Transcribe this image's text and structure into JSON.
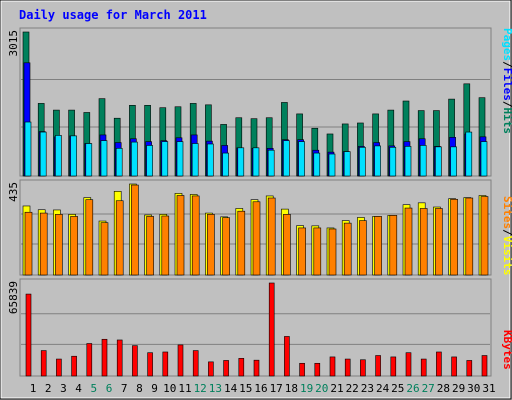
{
  "chart_data": [
    {
      "type": "bar",
      "title": "Daily usage for March 2011",
      "categories": [
        "1",
        "2",
        "3",
        "4",
        "5",
        "6",
        "7",
        "8",
        "9",
        "10",
        "11",
        "12",
        "13",
        "14",
        "15",
        "16",
        "17",
        "18",
        "19",
        "20",
        "21",
        "22",
        "23",
        "24",
        "25",
        "26",
        "27",
        "28",
        "29",
        "30",
        "31"
      ],
      "weekend_days": [
        "5",
        "6",
        "12",
        "13",
        "19",
        "20",
        "26",
        "27"
      ],
      "ylim": [
        0,
        3015
      ],
      "max_label": "3015",
      "series": [
        {
          "name": "Hits",
          "color": "#00805c",
          "values": [
            3015,
            1520,
            1380,
            1380,
            1330,
            1620,
            1210,
            1480,
            1480,
            1430,
            1450,
            1520,
            1490,
            1080,
            1220,
            1200,
            1220,
            1540,
            1300,
            1000,
            880,
            1090,
            1110,
            1300,
            1380,
            1570,
            1370,
            1370,
            1610,
            1930,
            1640
          ]
        },
        {
          "name": "Files",
          "color": "#0000ff",
          "values": [
            2370,
            930,
            820,
            840,
            680,
            860,
            700,
            780,
            720,
            740,
            800,
            860,
            730,
            640,
            590,
            580,
            580,
            760,
            760,
            540,
            500,
            510,
            620,
            700,
            630,
            720,
            780,
            620,
            810,
            880,
            820
          ]
        },
        {
          "name": "Pages",
          "color": "#00e0ff",
          "values": [
            1130,
            920,
            850,
            840,
            680,
            740,
            580,
            710,
            640,
            720,
            720,
            680,
            670,
            480,
            590,
            590,
            540,
            740,
            720,
            480,
            460,
            510,
            600,
            630,
            600,
            620,
            640,
            610,
            610,
            920,
            720
          ]
        }
      ],
      "legend": [
        "Pages",
        "/",
        "Files",
        "/",
        "Hits"
      ]
    },
    {
      "type": "bar",
      "categories": [
        "1",
        "2",
        "3",
        "4",
        "5",
        "6",
        "7",
        "8",
        "9",
        "10",
        "11",
        "12",
        "13",
        "14",
        "15",
        "16",
        "17",
        "18",
        "19",
        "20",
        "21",
        "22",
        "23",
        "24",
        "25",
        "26",
        "27",
        "28",
        "29",
        "30",
        "31"
      ],
      "ylim": [
        0,
        435
      ],
      "max_label": "435",
      "series": [
        {
          "name": "Visits",
          "color": "#ffff00",
          "values": [
            330,
            312,
            311,
            290,
            370,
            258,
            400,
            435,
            287,
            290,
            390,
            385,
            296,
            278,
            318,
            360,
            378,
            315,
            236,
            235,
            225,
            260,
            275,
            280,
            285,
            336,
            345,
            325,
            365,
            370,
            380
          ]
        },
        {
          "name": "Sites",
          "color": "#ff8000",
          "values": [
            300,
            296,
            290,
            280,
            360,
            250,
            355,
            430,
            280,
            282,
            380,
            378,
            290,
            274,
            305,
            350,
            368,
            290,
            225,
            225,
            220,
            248,
            260,
            280,
            285,
            320,
            318,
            318,
            362,
            368,
            375
          ]
        }
      ],
      "legend": [
        "Sites",
        "/",
        "Visits"
      ]
    },
    {
      "type": "bar",
      "categories": [
        "1",
        "2",
        "3",
        "4",
        "5",
        "6",
        "7",
        "8",
        "9",
        "10",
        "11",
        "12",
        "13",
        "14",
        "15",
        "16",
        "17",
        "18",
        "19",
        "20",
        "21",
        "22",
        "23",
        "24",
        "25",
        "26",
        "27",
        "28",
        "29",
        "30",
        "31"
      ],
      "ylim": [
        0,
        65839
      ],
      "max_label": "65839",
      "series": [
        {
          "name": "KBytes",
          "color": "#ff0000",
          "values": [
            58000,
            18000,
            12000,
            14000,
            23000,
            26000,
            25500,
            21500,
            16500,
            17000,
            22000,
            18000,
            10000,
            11000,
            12500,
            11200,
            65839,
            28000,
            9000,
            9000,
            13500,
            12000,
            11500,
            14500,
            13500,
            16500,
            12000,
            17000,
            13500,
            11000,
            14500
          ]
        }
      ],
      "legend": [
        "KBytes"
      ]
    }
  ]
}
